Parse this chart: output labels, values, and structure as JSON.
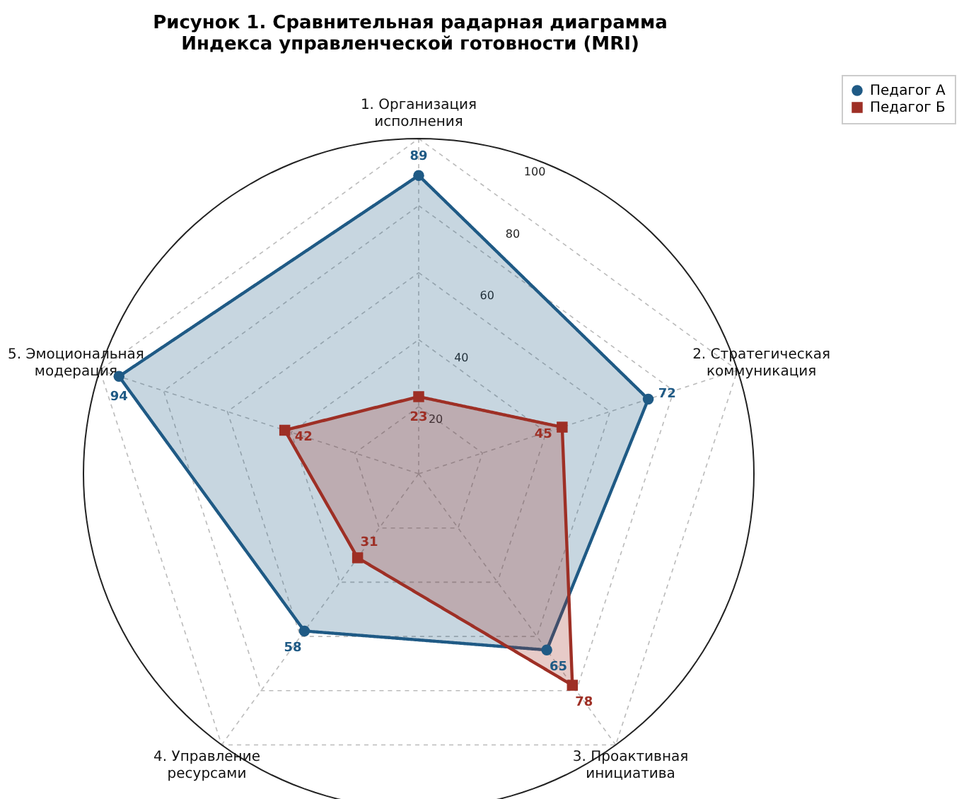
{
  "chart_data": {
    "type": "radar",
    "title": "Рисунок 1. Сравнительная радарная диаграмма\nИндекса управленческой готовности (MRI)",
    "categories": [
      "1. Организация\nисполнения",
      "2. Стратегическая\nкоммуникация",
      "3. Проактивная\nинициатива",
      "4. Управление\nресурсами",
      "5. Эмоциональная\nмодерация"
    ],
    "series": [
      {
        "name": "Педагог А",
        "color": "#1f5a85",
        "marker": "circle",
        "values": [
          89,
          72,
          65,
          58,
          94
        ]
      },
      {
        "name": "Педагог Б",
        "color": "#9e2f25",
        "marker": "square",
        "values": [
          23,
          45,
          78,
          31,
          42
        ]
      }
    ],
    "ylim": [
      0,
      100
    ],
    "yticks": [
      20,
      40,
      60,
      80,
      100
    ],
    "grid": true,
    "legend": "top right",
    "data_labels": true
  }
}
